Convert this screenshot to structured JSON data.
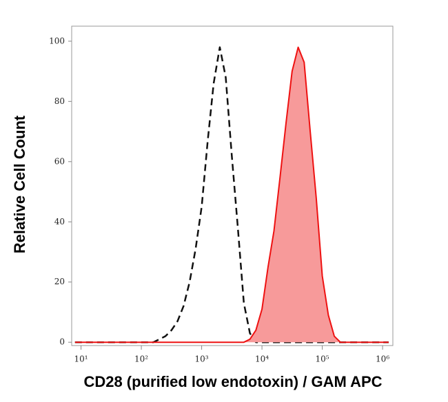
{
  "chart_data": {
    "type": "line",
    "log_x": true,
    "xlabel": "CD28 (purified low endotoxin) / GAM APC",
    "ylabel": "Relative Cell Count",
    "x": [
      7.94,
      10,
      12.6,
      15.8,
      20,
      25.1,
      31.6,
      39.8,
      50.1,
      63.1,
      79.4,
      100,
      126,
      158,
      200,
      251,
      316,
      398,
      501,
      631,
      794,
      1000,
      1260,
      1580,
      2000,
      2510,
      3160,
      3980,
      5010,
      6310,
      7940,
      10000,
      12600,
      15800,
      20000,
      25100,
      31600,
      39800,
      50100,
      63100,
      79400,
      100000,
      126000,
      158000,
      200000,
      251000,
      316000,
      398000,
      501000,
      631000,
      794000,
      1000000,
      1260000
    ],
    "series": [
      {
        "color": "#111111",
        "dashed": true,
        "values": [
          0,
          0,
          0,
          0,
          0,
          0,
          0,
          0,
          0,
          0,
          0,
          0,
          0,
          0,
          1,
          2,
          4,
          7,
          12,
          20,
          31,
          45,
          67,
          86,
          98,
          88,
          62,
          38,
          13,
          3,
          0,
          0,
          0,
          0,
          0,
          0,
          0,
          0,
          0,
          0,
          0,
          0,
          0,
          0,
          0,
          0,
          0,
          0,
          0,
          0,
          0,
          0,
          0
        ]
      },
      {
        "color": "#ee1111",
        "fill": "#f79a9a",
        "values": [
          0,
          0,
          0,
          0,
          0,
          0,
          0,
          0,
          0,
          0,
          0,
          0,
          0,
          0,
          0,
          0,
          0,
          0,
          0,
          0,
          0,
          0,
          0,
          0,
          0,
          0,
          0,
          0,
          0,
          1,
          4,
          11,
          25,
          37,
          55,
          73,
          90,
          98,
          93,
          70,
          48,
          22,
          9,
          2,
          0,
          0,
          0,
          0,
          0,
          0,
          0,
          0,
          0
        ]
      }
    ],
    "xlim": [
      7,
      1480000
    ],
    "xticks": [
      {
        "value": 10,
        "label": "10¹"
      },
      {
        "value": 100,
        "label": "10²"
      },
      {
        "value": 1000,
        "label": "10³"
      },
      {
        "value": 10000,
        "label": "10⁴"
      },
      {
        "value": 100000,
        "label": "10⁵"
      },
      {
        "value": 1000000,
        "label": "10⁶"
      }
    ],
    "ylim": [
      -1.1,
      105
    ],
    "yticks": [
      0,
      20,
      40,
      60,
      80,
      100
    ]
  }
}
